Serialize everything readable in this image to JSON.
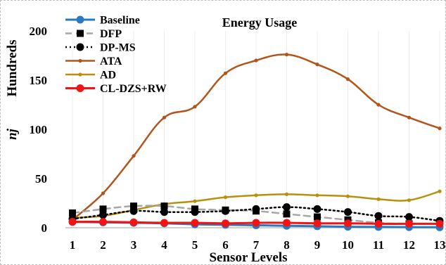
{
  "chart_data": {
    "type": "line",
    "title": "Energy Usage",
    "xlabel": "Sensor Levels",
    "ylabel": "nj",
    "ylabel_unit": "Hundreds",
    "ylim": [
      0,
      200
    ],
    "yticks": [
      0,
      50,
      100,
      150,
      200
    ],
    "categories": [
      "1",
      "2",
      "3",
      "4",
      "5",
      "6",
      "7",
      "8",
      "9",
      "10",
      "11",
      "12",
      "13"
    ],
    "legend_position": "top-left",
    "series": [
      {
        "name": "Baseline",
        "color": "#2a78c0",
        "dash": "",
        "width": 3,
        "marker": "circle",
        "values": [
          6,
          5.5,
          5,
          4.5,
          3.5,
          3,
          2.5,
          2,
          1.5,
          1,
          0.8,
          0.6,
          0.5
        ]
      },
      {
        "name": "DFP",
        "color": "#a6a6a6",
        "dash": "9,6",
        "width": 2.5,
        "marker": "square",
        "values": [
          15,
          19,
          22,
          22,
          19,
          18,
          17,
          14,
          11,
          8,
          5,
          4,
          4
        ]
      },
      {
        "name": "DP-MS",
        "color": "#000000",
        "dash": "2,4",
        "width": 2.5,
        "marker": "circle",
        "values": [
          9,
          13,
          17,
          16,
          16,
          17,
          19,
          21,
          19,
          16,
          12,
          11,
          7
        ]
      },
      {
        "name": "ATA",
        "color": "#b2551c",
        "dash": "",
        "width": 2.5,
        "marker": "dot",
        "values": [
          8,
          35,
          73,
          112,
          123,
          157,
          170,
          176,
          166,
          151,
          125,
          112,
          101
        ]
      },
      {
        "name": "AD",
        "color": "#b8900e",
        "dash": "",
        "width": 2.5,
        "marker": "dot",
        "values": [
          10,
          12,
          18,
          24,
          27,
          31,
          33,
          34,
          33,
          32,
          29,
          28,
          37
        ]
      },
      {
        "name": "CL-DZS+RW",
        "color": "#f01414",
        "dash": "",
        "width": 3,
        "marker": "circle",
        "values": [
          6,
          6,
          5.5,
          5,
          5,
          4.5,
          5,
          5,
          4.5,
          4.5,
          4,
          4,
          4
        ]
      }
    ]
  }
}
